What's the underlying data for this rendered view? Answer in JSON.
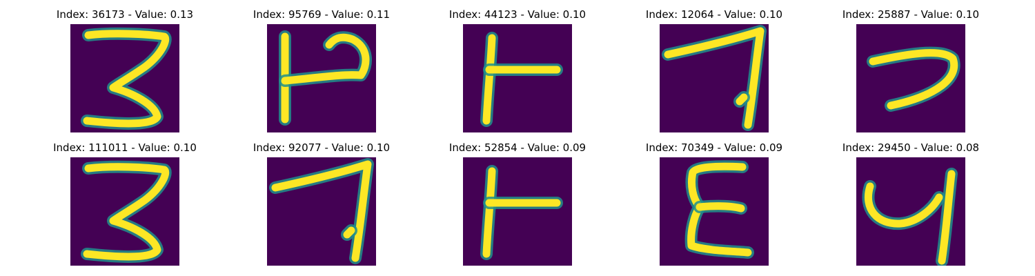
{
  "colors": {
    "background": "#440154",
    "stroke_outer": "#21908c",
    "stroke_inner": "#fde725"
  },
  "panels": [
    {
      "title": "Index: 36173 - Value: 0.13",
      "glyph": "three-glyph"
    },
    {
      "title": "Index: 95769 - Value: 0.11",
      "glyph": "rotated-p-glyph"
    },
    {
      "title": "Index: 44123 - Value: 0.10",
      "glyph": "t-junction-glyph"
    },
    {
      "title": "Index: 12064 - Value: 0.10",
      "glyph": "seven-glyph"
    },
    {
      "title": "Index: 25887 - Value: 0.10",
      "glyph": "reversed-c-glyph"
    },
    {
      "title": "Index: 111011 - Value: 0.10",
      "glyph": "three-glyph"
    },
    {
      "title": "Index: 92077 - Value: 0.10",
      "glyph": "seven-glyph"
    },
    {
      "title": "Index: 52854 - Value: 0.09",
      "glyph": "t-junction-glyph"
    },
    {
      "title": "Index: 70349 - Value: 0.09",
      "glyph": "epsilon-glyph"
    },
    {
      "title": "Index: 29450 - Value: 0.08",
      "glyph": "y-shape-glyph"
    }
  ]
}
